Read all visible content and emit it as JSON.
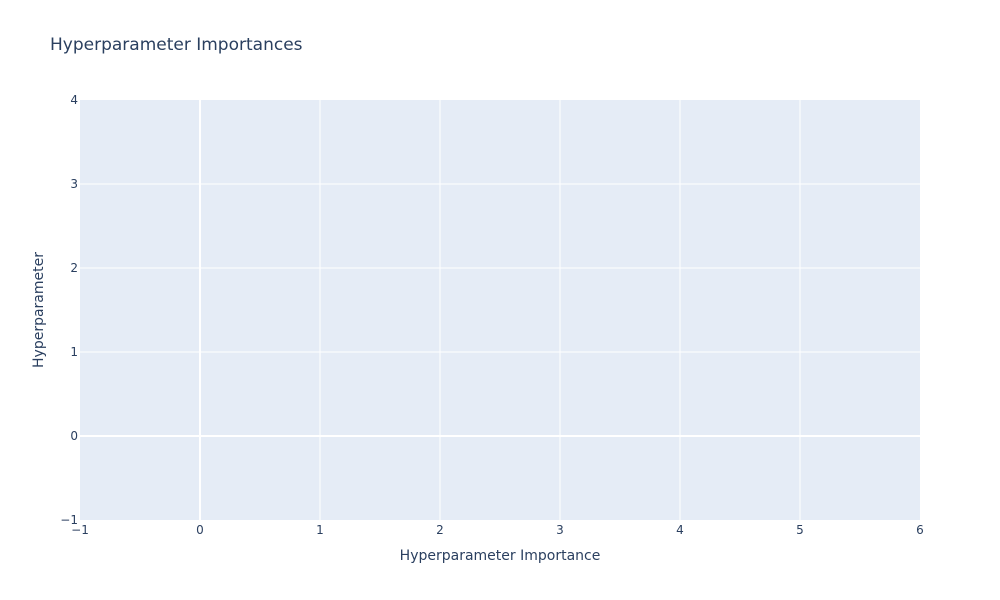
{
  "chart_data": {
    "type": "bar",
    "orientation": "horizontal",
    "title": "Hyperparameter Importances",
    "xlabel": "Hyperparameter Importance",
    "ylabel": "Hyperparameter",
    "xlim": [
      -1,
      6
    ],
    "ylim": [
      -1,
      4
    ],
    "xticks": [
      "−1",
      "0",
      "1",
      "2",
      "3",
      "4",
      "5",
      "6"
    ],
    "yticks": [
      "−1",
      "0",
      "1",
      "2",
      "3",
      "4"
    ],
    "grid": true,
    "series": [],
    "colors": {
      "plot_background": "#e5ecf6",
      "grid": "#ffffff",
      "text": "#2a3f5f"
    }
  }
}
